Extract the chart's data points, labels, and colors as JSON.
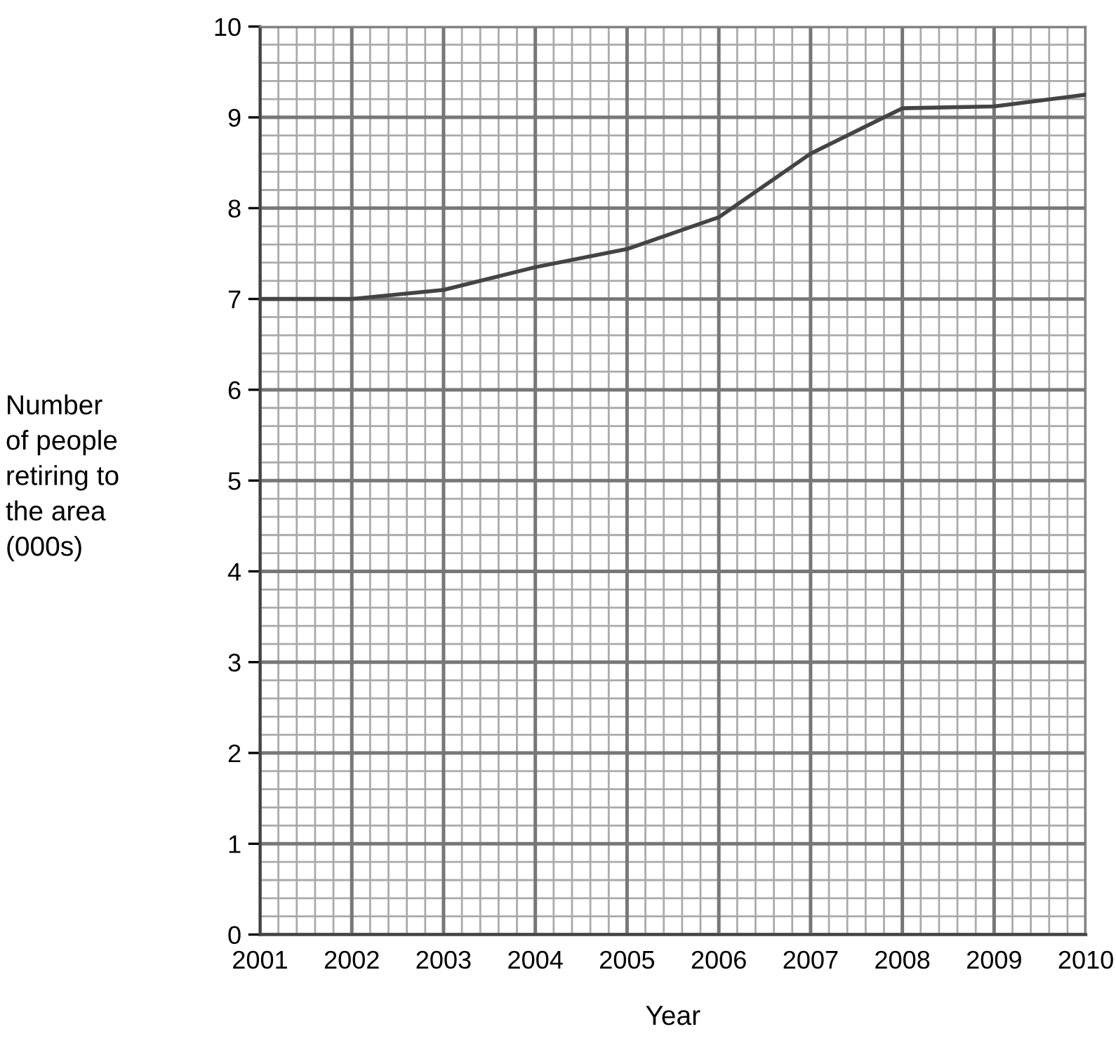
{
  "chart_data": {
    "type": "line",
    "xlabel": "Year",
    "ylabel": "Number\nof people\nretiring to\nthe area\n(000s)",
    "x": [
      2001,
      2002,
      2003,
      2004,
      2005,
      2006,
      2007,
      2008,
      2009,
      2010
    ],
    "series": [
      {
        "color": "#444444",
        "values": [
          7.0,
          7.0,
          7.1,
          7.35,
          7.55,
          7.9,
          8.6,
          9.1,
          9.12,
          9.25
        ]
      }
    ],
    "xlim": [
      2001,
      2010
    ],
    "xticks": [
      2001,
      2002,
      2003,
      2004,
      2005,
      2006,
      2007,
      2008,
      2009,
      2010
    ],
    "ylim": [
      0,
      10
    ],
    "yticks": [
      0,
      1,
      2,
      3,
      4,
      5,
      6,
      7,
      8,
      9,
      10
    ],
    "grid": true,
    "marker": "none",
    "line_style": "solid"
  }
}
